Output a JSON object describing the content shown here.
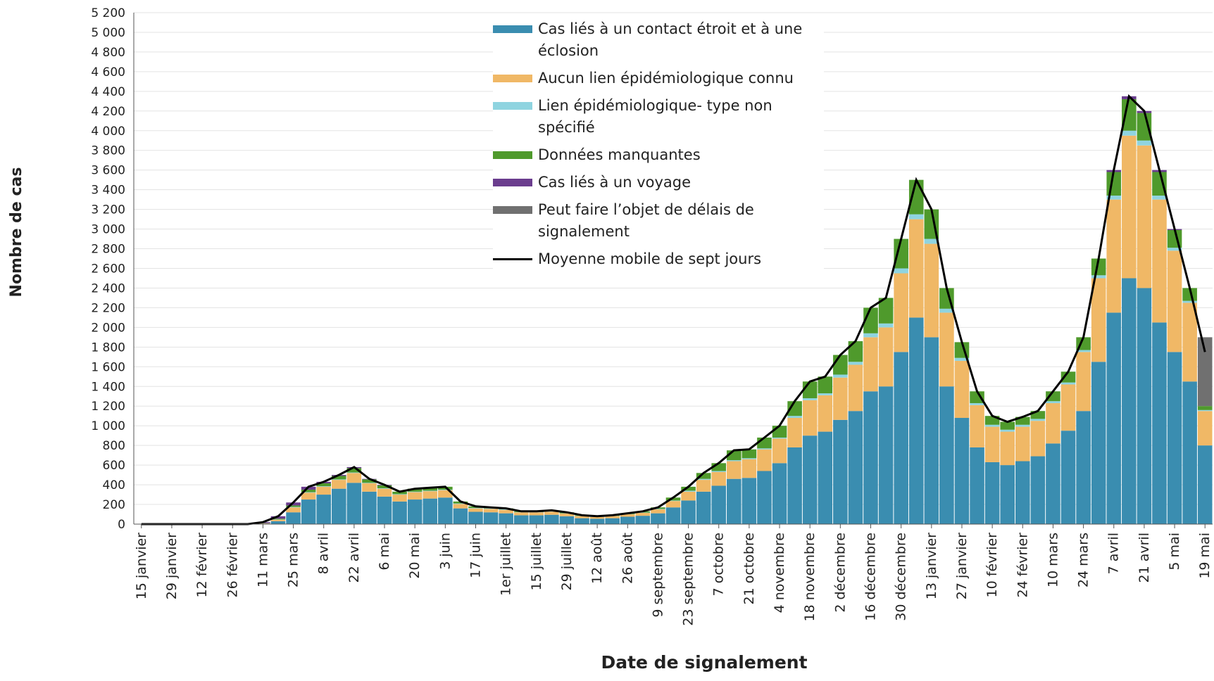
{
  "chart_data": {
    "type": "stacked-bar",
    "y_label": "Nombre de cas",
    "x_label": "Date de signalement",
    "categories": [
      "15 janvier",
      null,
      "29 janvier",
      null,
      "12 février",
      null,
      "26 février",
      null,
      "11 mars",
      null,
      "25 mars",
      null,
      "8 avril",
      null,
      "22 avril",
      null,
      "6 mai",
      null,
      "20 mai",
      null,
      "3 juin",
      null,
      "17 juin",
      null,
      "1er juillet",
      null,
      "15 juillet",
      null,
      "29 juillet",
      null,
      "12 août",
      null,
      "26 août",
      null,
      "9 septembre",
      null,
      "23 septembre",
      null,
      "7 octobre",
      null,
      "21 octobre",
      null,
      "4 novembre",
      null,
      "18 novembre",
      null,
      "2 décembre",
      null,
      "16 décembre",
      null,
      "30 décembre",
      null,
      "13 janvier",
      null,
      "27 janvier",
      null,
      "10 février",
      null,
      "24 février",
      null,
      "10 mars",
      null,
      "24 mars",
      null,
      "7 avril",
      null,
      "21 avril",
      null,
      "5 mai",
      null,
      "19 mai"
    ],
    "series": [
      {
        "name": "Cas liés à un contact étroit et à une éclosion",
        "color": "#3a8db0",
        "values": [
          0,
          0,
          0,
          0,
          0,
          0,
          0,
          0,
          5,
          30,
          120,
          250,
          300,
          360,
          420,
          330,
          280,
          230,
          250,
          260,
          270,
          160,
          125,
          120,
          110,
          90,
          90,
          95,
          80,
          60,
          55,
          60,
          75,
          85,
          110,
          170,
          240,
          330,
          390,
          460,
          470,
          540,
          620,
          780,
          900,
          940,
          1060,
          1150,
          1350,
          1400,
          1750,
          2100,
          1900,
          1400,
          1080,
          780,
          630,
          600,
          640,
          690,
          820,
          950,
          1150,
          1650,
          2150,
          2500,
          2400,
          2050,
          1750,
          1450,
          800
        ]
      },
      {
        "name": "Aucun lien épidémiologique connu",
        "color": "#f0b866",
        "values": [
          0,
          0,
          0,
          0,
          0,
          0,
          0,
          0,
          3,
          15,
          50,
          70,
          80,
          90,
          100,
          85,
          80,
          70,
          75,
          75,
          75,
          45,
          35,
          35,
          35,
          30,
          30,
          32,
          28,
          22,
          18,
          22,
          25,
          30,
          40,
          65,
          90,
          120,
          140,
          180,
          190,
          220,
          250,
          300,
          360,
          370,
          430,
          470,
          550,
          600,
          800,
          1000,
          950,
          750,
          580,
          430,
          360,
          340,
          350,
          360,
          410,
          470,
          600,
          850,
          1150,
          1450,
          1450,
          1250,
          1030,
          800,
          350
        ]
      },
      {
        "name": "Lien épidémiologique- type non spécifié",
        "color": "#8fd4e0",
        "values": [
          0,
          0,
          0,
          0,
          0,
          0,
          0,
          0,
          0,
          2,
          5,
          5,
          5,
          5,
          5,
          5,
          5,
          5,
          5,
          5,
          5,
          5,
          5,
          5,
          5,
          2,
          2,
          3,
          2,
          2,
          2,
          2,
          2,
          3,
          5,
          5,
          10,
          10,
          10,
          10,
          10,
          10,
          10,
          20,
          20,
          20,
          30,
          30,
          40,
          40,
          50,
          50,
          50,
          40,
          30,
          20,
          20,
          20,
          20,
          20,
          20,
          20,
          20,
          30,
          40,
          50,
          50,
          40,
          30,
          20,
          10
        ]
      },
      {
        "name": "Données manquantes",
        "color": "#4f9a2c",
        "values": [
          0,
          0,
          0,
          0,
          0,
          0,
          0,
          0,
          2,
          8,
          15,
          25,
          30,
          35,
          45,
          35,
          30,
          25,
          30,
          30,
          30,
          20,
          15,
          10,
          10,
          8,
          8,
          10,
          10,
          6,
          5,
          6,
          8,
          12,
          15,
          30,
          40,
          60,
          80,
          100,
          90,
          110,
          120,
          150,
          170,
          170,
          200,
          210,
          260,
          260,
          300,
          350,
          300,
          210,
          160,
          120,
          90,
          80,
          80,
          80,
          100,
          110,
          130,
          170,
          240,
          320,
          280,
          240,
          180,
          130,
          40
        ]
      },
      {
        "name": "Cas liés à un voyage",
        "color": "#6b3d8e",
        "values": [
          0,
          0,
          0,
          0,
          0,
          0,
          0,
          0,
          10,
          25,
          30,
          30,
          15,
          10,
          10,
          5,
          5,
          0,
          0,
          0,
          0,
          0,
          0,
          0,
          0,
          0,
          0,
          0,
          0,
          0,
          0,
          0,
          0,
          0,
          0,
          0,
          0,
          0,
          0,
          0,
          0,
          0,
          0,
          0,
          0,
          0,
          0,
          0,
          0,
          0,
          0,
          0,
          0,
          0,
          0,
          0,
          0,
          0,
          0,
          0,
          0,
          0,
          0,
          0,
          20,
          30,
          20,
          20,
          10,
          0,
          0
        ]
      },
      {
        "name": "Peut faire l’objet de délais de signalement",
        "color": "#707070",
        "values": [
          0,
          0,
          0,
          0,
          0,
          0,
          0,
          0,
          0,
          0,
          0,
          0,
          0,
          0,
          0,
          0,
          0,
          0,
          0,
          0,
          0,
          0,
          0,
          0,
          0,
          0,
          0,
          0,
          0,
          0,
          0,
          0,
          0,
          0,
          0,
          0,
          0,
          0,
          0,
          0,
          0,
          0,
          0,
          0,
          0,
          0,
          0,
          0,
          0,
          0,
          0,
          0,
          0,
          0,
          0,
          0,
          0,
          0,
          0,
          0,
          0,
          0,
          0,
          0,
          0,
          0,
          0,
          0,
          0,
          0,
          700
        ]
      }
    ],
    "line": {
      "name": "Moyenne mobile de sept jours",
      "color": "#000000",
      "values": [
        0,
        0,
        0,
        0,
        0,
        0,
        0,
        0,
        20,
        80,
        220,
        380,
        430,
        500,
        580,
        460,
        400,
        330,
        360,
        370,
        380,
        230,
        180,
        170,
        160,
        130,
        130,
        140,
        120,
        90,
        80,
        90,
        110,
        130,
        170,
        270,
        380,
        520,
        620,
        750,
        760,
        880,
        1000,
        1250,
        1450,
        1500,
        1720,
        1860,
        2200,
        2300,
        2900,
        3500,
        3200,
        2400,
        1850,
        1350,
        1100,
        1040,
        1090,
        1150,
        1350,
        1550,
        1900,
        2700,
        3600,
        4350,
        4200,
        3600,
        3000,
        2400,
        1750
      ]
    },
    "ylim": [
      0,
      5200
    ],
    "yticks": [
      0,
      200,
      400,
      600,
      800,
      {
        "value": 1000,
        "label": "1 000"
      },
      {
        "value": 1200,
        "label": "1 200"
      },
      {
        "value": 1400,
        "label": "1 400"
      },
      {
        "value": 1600,
        "label": "1 600"
      },
      {
        "value": 1800,
        "label": "1 800"
      },
      {
        "value": 2000,
        "label": "2 000"
      },
      {
        "value": 2200,
        "label": "2 200"
      },
      {
        "value": 2400,
        "label": "2 400"
      },
      {
        "value": 2600,
        "label": "2 600"
      },
      {
        "value": 2800,
        "label": "2 800"
      },
      {
        "value": 3000,
        "label": "3 000"
      },
      {
        "value": 3200,
        "label": "3 200"
      },
      {
        "value": 3400,
        "label": "3 400"
      },
      {
        "value": 3600,
        "label": "3 600"
      },
      {
        "value": 3800,
        "label": "3 800"
      },
      {
        "value": 4000,
        "label": "4 000"
      },
      {
        "value": 4200,
        "label": "4 200"
      },
      {
        "value": 4400,
        "label": "4 400"
      },
      {
        "value": 4600,
        "label": "4 600"
      },
      {
        "value": 4800,
        "label": "4 800"
      },
      {
        "value": 5000,
        "label": "5 000"
      },
      {
        "value": 5200,
        "label": "5 200"
      }
    ],
    "grid": true
  }
}
